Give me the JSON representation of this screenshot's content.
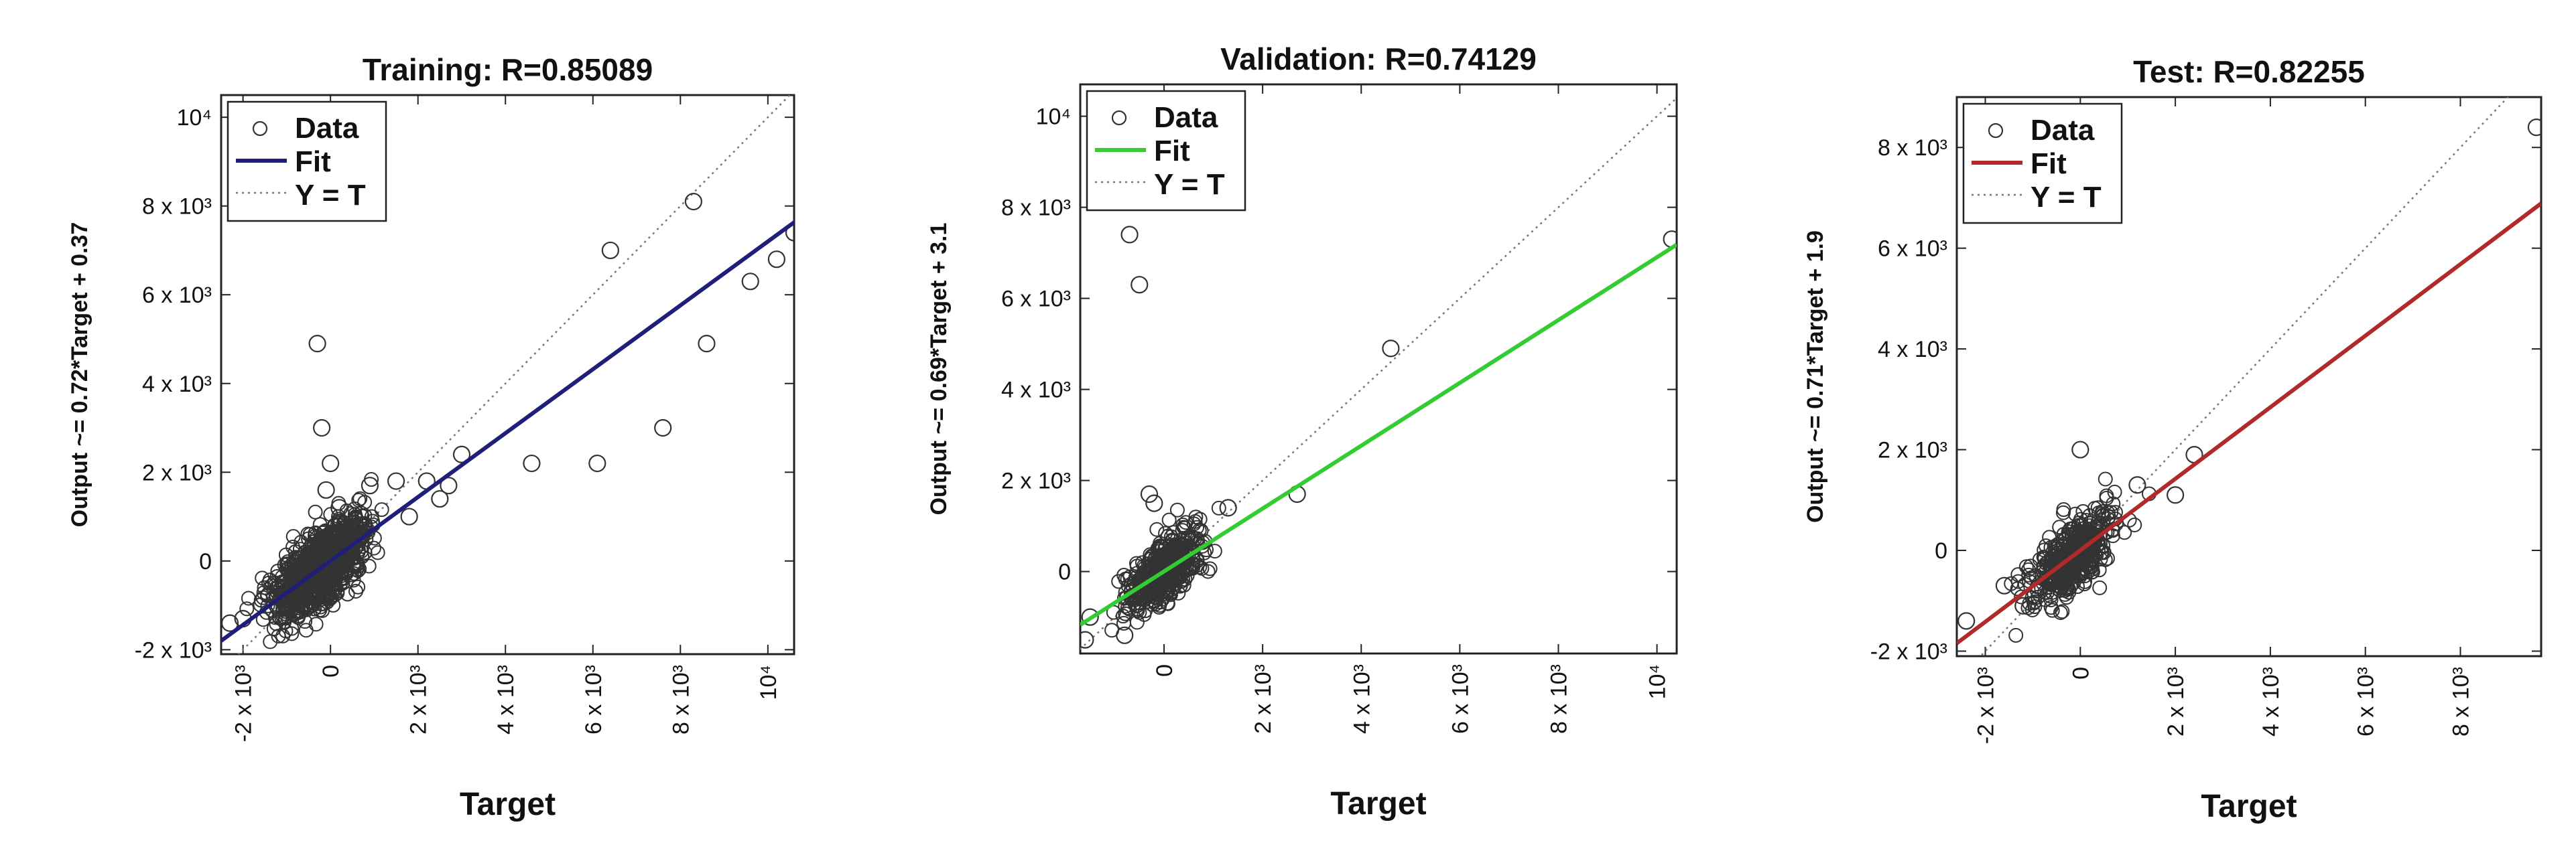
{
  "chart_data": [
    {
      "type": "scatter",
      "title": "Training: R=0.85089",
      "xlabel": "Target",
      "ylabel": "Output ~= 0.72*Target + 0.37",
      "xlim": [
        -2500,
        10600
      ],
      "ylim": [
        -2100,
        10500
      ],
      "xticks": [
        {
          "v": -2000,
          "label": "-2 x 10³"
        },
        {
          "v": 0,
          "label": "0"
        },
        {
          "v": 2000,
          "label": "2 x 10³"
        },
        {
          "v": 4000,
          "label": "4 x 10³"
        },
        {
          "v": 6000,
          "label": "6 x 10³"
        },
        {
          "v": 8000,
          "label": "8 x 10³"
        },
        {
          "v": 10000,
          "label": "10⁴"
        }
      ],
      "yticks": [
        {
          "v": -2000,
          "label": "-2 x 10³"
        },
        {
          "v": 0,
          "label": "0"
        },
        {
          "v": 2000,
          "label": "2 x 10³"
        },
        {
          "v": 4000,
          "label": "4 x 10³"
        },
        {
          "v": 6000,
          "label": "6 x 10³"
        },
        {
          "v": 8000,
          "label": "8 x 10³"
        },
        {
          "v": 10000,
          "label": "10⁴"
        }
      ],
      "fit": {
        "slope": 0.72,
        "intercept": 0.37,
        "color": "#1f1f7a"
      },
      "legend": {
        "position": "top-left",
        "entries": [
          "Data",
          "Fit",
          "Y = T"
        ]
      },
      "outliers": [
        [
          -2000,
          -1300
        ],
        [
          -2300,
          -1400
        ],
        [
          -300,
          4900
        ],
        [
          -200,
          3000
        ],
        [
          0,
          2200
        ],
        [
          -100,
          1600
        ],
        [
          200,
          1200
        ],
        [
          900,
          1700
        ],
        [
          1500,
          1800
        ],
        [
          2200,
          1800
        ],
        [
          3000,
          2400
        ],
        [
          2700,
          1700
        ],
        [
          4600,
          2200
        ],
        [
          6100,
          2200
        ],
        [
          6400,
          7000
        ],
        [
          7600,
          3000
        ],
        [
          8300,
          8100
        ],
        [
          8600,
          4900
        ],
        [
          9600,
          6300
        ],
        [
          10200,
          6800
        ],
        [
          10600,
          7400
        ],
        [
          1800,
          1000
        ],
        [
          2500,
          1400
        ]
      ],
      "cluster": {
        "x_center": -200,
        "x_spread": 1000,
        "y_spread": 420,
        "count": 900
      }
    },
    {
      "type": "scatter",
      "title": "Validation:  R=0.74129",
      "xlabel": "Target",
      "ylabel": "Output ~= 0.69*Target + 3.1",
      "xlim": [
        -1700,
        10400
      ],
      "ylim": [
        -1800,
        10700
      ],
      "xticks": [
        {
          "v": 0,
          "label": "0"
        },
        {
          "v": 2000,
          "label": "2 x 10³"
        },
        {
          "v": 4000,
          "label": "4 x 10³"
        },
        {
          "v": 6000,
          "label": "6 x 10³"
        },
        {
          "v": 8000,
          "label": "8 x 10³"
        },
        {
          "v": 10000,
          "label": "10⁴"
        }
      ],
      "yticks": [
        {
          "v": 0,
          "label": "0"
        },
        {
          "v": 2000,
          "label": "2 x 10³"
        },
        {
          "v": 4000,
          "label": "4 x 10³"
        },
        {
          "v": 6000,
          "label": "6 x 10³"
        },
        {
          "v": 8000,
          "label": "8 x 10³"
        },
        {
          "v": 10000,
          "label": "10⁴"
        }
      ],
      "fit": {
        "slope": 0.69,
        "intercept": 3.1,
        "color": "#33cc33"
      },
      "legend": {
        "position": "top-left",
        "entries": [
          "Data",
          "Fit",
          "Y = T"
        ]
      },
      "outliers": [
        [
          -1600,
          -1500
        ],
        [
          -1500,
          -1000
        ],
        [
          -700,
          7400
        ],
        [
          -500,
          6300
        ],
        [
          -300,
          1700
        ],
        [
          -200,
          1500
        ],
        [
          2700,
          1700
        ],
        [
          4600,
          4900
        ],
        [
          10300,
          7300
        ],
        [
          1300,
          1400
        ],
        [
          -800,
          -1400
        ]
      ],
      "cluster": {
        "x_center": 0,
        "x_spread": 700,
        "y_spread": 330,
        "count": 420
      }
    },
    {
      "type": "scatter",
      "title": "Test: R=0.82255",
      "xlabel": "Target",
      "ylabel": "Output ~= 0.71*Target + 1.9",
      "xlim": [
        -2600,
        9700
      ],
      "ylim": [
        -2100,
        9000
      ],
      "xticks": [
        {
          "v": -2000,
          "label": "-2 x 10³"
        },
        {
          "v": 0,
          "label": "0"
        },
        {
          "v": 2000,
          "label": "2 x 10³"
        },
        {
          "v": 4000,
          "label": "4 x 10³"
        },
        {
          "v": 6000,
          "label": "6 x 10³"
        },
        {
          "v": 8000,
          "label": "8 x 10³"
        }
      ],
      "yticks": [
        {
          "v": -2000,
          "label": "-2 x 10³"
        },
        {
          "v": 0,
          "label": "0"
        },
        {
          "v": 2000,
          "label": "2 x 10³"
        },
        {
          "v": 4000,
          "label": "4 x 10³"
        },
        {
          "v": 6000,
          "label": "6 x 10³"
        },
        {
          "v": 8000,
          "label": "8 x 10³"
        }
      ],
      "fit": {
        "slope": 0.71,
        "intercept": 1.9,
        "color": "#b02a2a"
      },
      "legend": {
        "position": "top-left",
        "entries": [
          "Data",
          "Fit",
          "Y = T"
        ]
      },
      "outliers": [
        [
          -2400,
          -1400
        ],
        [
          -1200,
          -1100
        ],
        [
          0,
          2000
        ],
        [
          2400,
          1900
        ],
        [
          2000,
          1100
        ],
        [
          9600,
          8400
        ],
        [
          1200,
          1300
        ],
        [
          -1600,
          -700
        ]
      ],
      "cluster": {
        "x_center": -150,
        "x_spread": 800,
        "y_spread": 330,
        "count": 420
      }
    }
  ]
}
